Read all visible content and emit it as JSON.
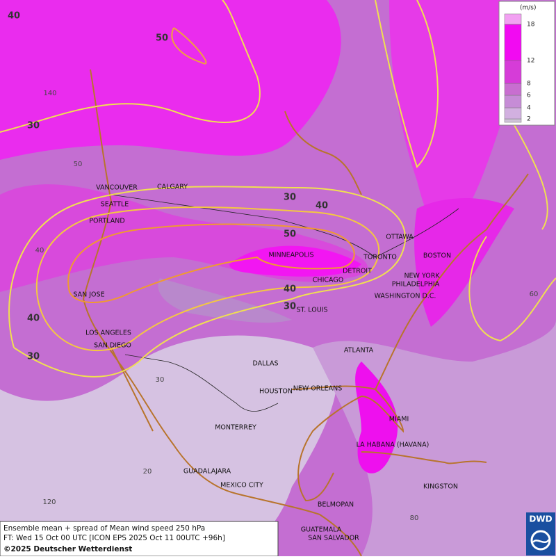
{
  "map": {
    "caption": [
      "Ensemble mean + spread of Mean wind speed 250 hPa",
      "FT: Wed 15 Oct 00 UTC [ICON EPS 2025 Oct 11 00UTC +96h]",
      "©2025 Deutscher Wetterdienst"
    ],
    "logo": "DWD",
    "legend": {
      "unit": "(m/s)",
      "ticks": [
        2,
        4,
        6,
        8,
        12,
        18
      ]
    },
    "cities": [
      "VANCOUVER",
      "CALGARY",
      "SEATTLE",
      "PORTLAND",
      "MINNEAPOLIS",
      "TORONTO",
      "OTTAWA",
      "BOSTON",
      "DETROIT",
      "CHICAGO",
      "NEW YORK",
      "PHILADELPHIA",
      "WASHINGTON D.C.",
      "SAN JOSE",
      "ST. LOUIS",
      "LOS ANGELES",
      "SAN DIEGO",
      "ATLANTA",
      "DALLAS",
      "HOUSTON",
      "NEW ORLEANS",
      "MIAMI",
      "MONTERREY",
      "LA HABANA (HAVANA)",
      "GUADALAJARA",
      "MEXICO CITY",
      "KINGSTON",
      "BELMOPAN",
      "GUATEMALA",
      "SAN SALVADOR"
    ],
    "grid_labels": [
      140,
      50,
      40,
      30,
      20,
      120,
      60,
      80
    ],
    "contour_labels": [
      40,
      50,
      30,
      30,
      40,
      50,
      40,
      30,
      40,
      30
    ]
  }
}
